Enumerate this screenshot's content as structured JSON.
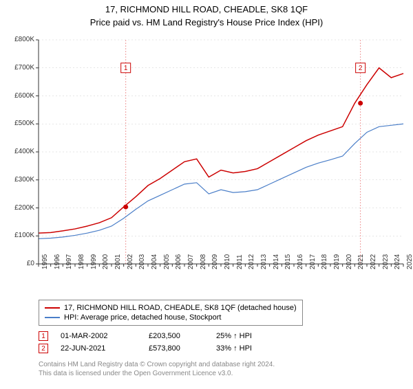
{
  "title": "17, RICHMOND HILL ROAD, CHEADLE, SK8 1QF",
  "subtitle": "Price paid vs. HM Land Registry's House Price Index (HPI)",
  "chart": {
    "type": "line",
    "background_color": "#ffffff",
    "plot_border_color": "#888888",
    "grid_color": "#cccccc",
    "grid_dash": "2,3",
    "vline_color": "#ef9a9a",
    "vline_dash": "2,2",
    "title_fontsize": 13,
    "label_fontsize": 10,
    "y_axis": {
      "min": 0,
      "max": 800000,
      "tick_step": 100000,
      "tick_labels": [
        "£0",
        "£100K",
        "£200K",
        "£300K",
        "£400K",
        "£500K",
        "£600K",
        "£700K",
        "£800K"
      ]
    },
    "x_axis": {
      "ticks": [
        1995,
        1996,
        1997,
        1998,
        1999,
        2000,
        2001,
        2002,
        2003,
        2004,
        2005,
        2006,
        2007,
        2008,
        2009,
        2010,
        2011,
        2012,
        2013,
        2014,
        2015,
        2016,
        2017,
        2018,
        2019,
        2020,
        2021,
        2022,
        2023,
        2024,
        2025
      ]
    },
    "series": [
      {
        "name": "property_price",
        "label": "17, RICHMOND HILL ROAD, CHEADLE, SK8 1QF (detached house)",
        "color": "#cc0000",
        "line_width": 1.5,
        "data": [
          [
            1995,
            110000
          ],
          [
            1996,
            112000
          ],
          [
            1997,
            118000
          ],
          [
            1998,
            125000
          ],
          [
            1999,
            135000
          ],
          [
            2000,
            147000
          ],
          [
            2001,
            165000
          ],
          [
            2002,
            203500
          ],
          [
            2003,
            240000
          ],
          [
            2004,
            280000
          ],
          [
            2005,
            305000
          ],
          [
            2006,
            335000
          ],
          [
            2007,
            365000
          ],
          [
            2008,
            375000
          ],
          [
            2009,
            310000
          ],
          [
            2010,
            335000
          ],
          [
            2011,
            325000
          ],
          [
            2012,
            330000
          ],
          [
            2013,
            340000
          ],
          [
            2014,
            365000
          ],
          [
            2015,
            390000
          ],
          [
            2016,
            415000
          ],
          [
            2017,
            440000
          ],
          [
            2018,
            460000
          ],
          [
            2019,
            475000
          ],
          [
            2020,
            490000
          ],
          [
            2021,
            573800
          ],
          [
            2022,
            640000
          ],
          [
            2023,
            700000
          ],
          [
            2024,
            665000
          ],
          [
            2025,
            680000
          ]
        ]
      },
      {
        "name": "hpi",
        "label": "HPI: Average price, detached house, Stockport",
        "color": "#4a7ec8",
        "line_width": 1.2,
        "data": [
          [
            1995,
            90000
          ],
          [
            1996,
            92000
          ],
          [
            1997,
            96000
          ],
          [
            1998,
            102000
          ],
          [
            1999,
            110000
          ],
          [
            2000,
            120000
          ],
          [
            2001,
            135000
          ],
          [
            2002,
            163000
          ],
          [
            2003,
            195000
          ],
          [
            2004,
            225000
          ],
          [
            2005,
            245000
          ],
          [
            2006,
            265000
          ],
          [
            2007,
            285000
          ],
          [
            2008,
            290000
          ],
          [
            2009,
            250000
          ],
          [
            2010,
            265000
          ],
          [
            2011,
            255000
          ],
          [
            2012,
            258000
          ],
          [
            2013,
            265000
          ],
          [
            2014,
            285000
          ],
          [
            2015,
            305000
          ],
          [
            2016,
            325000
          ],
          [
            2017,
            345000
          ],
          [
            2018,
            360000
          ],
          [
            2019,
            372000
          ],
          [
            2020,
            385000
          ],
          [
            2021,
            430000
          ],
          [
            2022,
            470000
          ],
          [
            2023,
            490000
          ],
          [
            2024,
            495000
          ],
          [
            2025,
            500000
          ]
        ]
      }
    ],
    "markers": [
      {
        "id": "1",
        "x": 2002.17,
        "y": 203500,
        "color": "#cc0000",
        "label_y": 700000
      },
      {
        "id": "2",
        "x": 2021.47,
        "y": 573800,
        "color": "#cc0000",
        "label_y": 700000
      }
    ]
  },
  "legend": {
    "items": [
      {
        "color": "#cc0000",
        "label": "17, RICHMOND HILL ROAD, CHEADLE, SK8 1QF (detached house)"
      },
      {
        "color": "#4a7ec8",
        "label": "HPI: Average price, detached house, Stockport"
      }
    ]
  },
  "datapoints": [
    {
      "marker": "1",
      "marker_color": "#cc0000",
      "date": "01-MAR-2002",
      "price": "£203,500",
      "vs_hpi": "25% ↑ HPI"
    },
    {
      "marker": "2",
      "marker_color": "#cc0000",
      "date": "22-JUN-2021",
      "price": "£573,800",
      "vs_hpi": "33% ↑ HPI"
    }
  ],
  "footnote_line1": "Contains HM Land Registry data © Crown copyright and database right 2024.",
  "footnote_line2": "This data is licensed under the Open Government Licence v3.0."
}
